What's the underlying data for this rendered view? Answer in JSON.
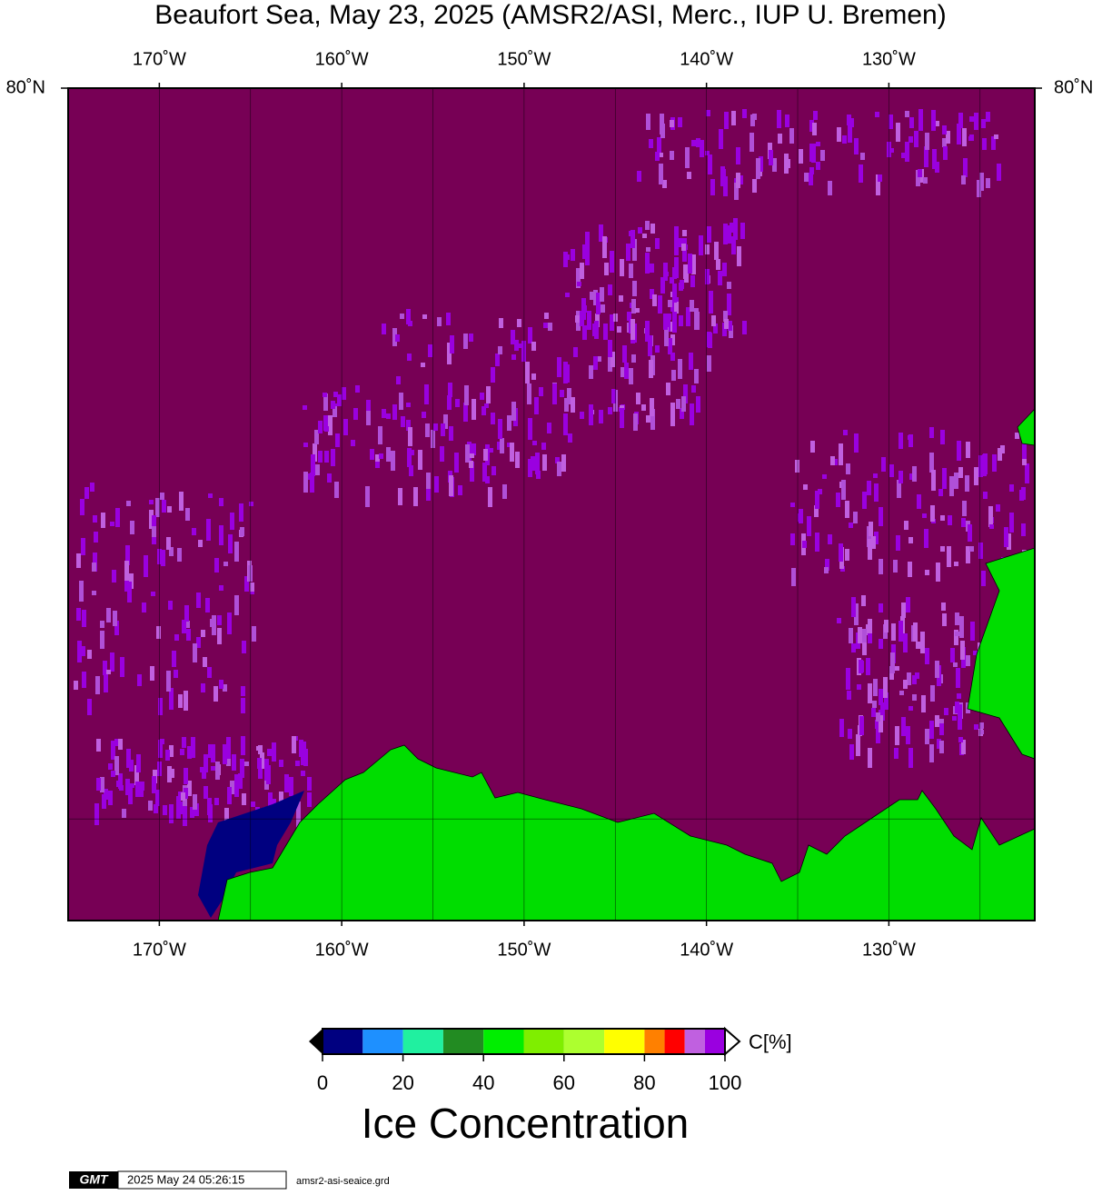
{
  "title": "Beaufort Sea, May 23, 2025 (AMSR2/ASI, Merc., IUP U. Bremen)",
  "map": {
    "xlim": [
      -175,
      -122
    ],
    "ylim": [
      68,
      80
    ],
    "xticks": [
      {
        "value": -170,
        "label": "170˚W"
      },
      {
        "value": -160,
        "label": "160˚W"
      },
      {
        "value": -150,
        "label": "150˚W"
      },
      {
        "value": -140,
        "label": "140˚W"
      },
      {
        "value": -130,
        "label": "130˚W"
      }
    ],
    "yticks": [
      {
        "value": 80,
        "label": "80˚N"
      }
    ],
    "xgrid": [
      -170,
      -165,
      -160,
      -155,
      -150,
      -145,
      -140,
      -135,
      -130,
      -125
    ],
    "ygrid": [
      70
    ],
    "ocean_color": "#770055",
    "land_color": "#00dd00"
  },
  "colorbar": {
    "label": "C[%]",
    "title": "Ice Concentration",
    "lim": [
      0,
      100
    ],
    "ticks": [
      0,
      20,
      40,
      60,
      80,
      100
    ],
    "bins": [
      0,
      10,
      20,
      30,
      40,
      50,
      60,
      70,
      80,
      85,
      90,
      95,
      100
    ],
    "colors": [
      "#000080",
      "#1e90ff",
      "#20f0a0",
      "#228b22",
      "#00ee00",
      "#7fee00",
      "#adff2f",
      "#ffff00",
      "#ff8000",
      "#ff0000",
      "#c060e0",
      "#9a00e0"
    ]
  },
  "footer": {
    "logo": "GMT",
    "timestamp": "2025 May 24 05:26:15",
    "file": "amsr2-asi-seaice.grd"
  }
}
